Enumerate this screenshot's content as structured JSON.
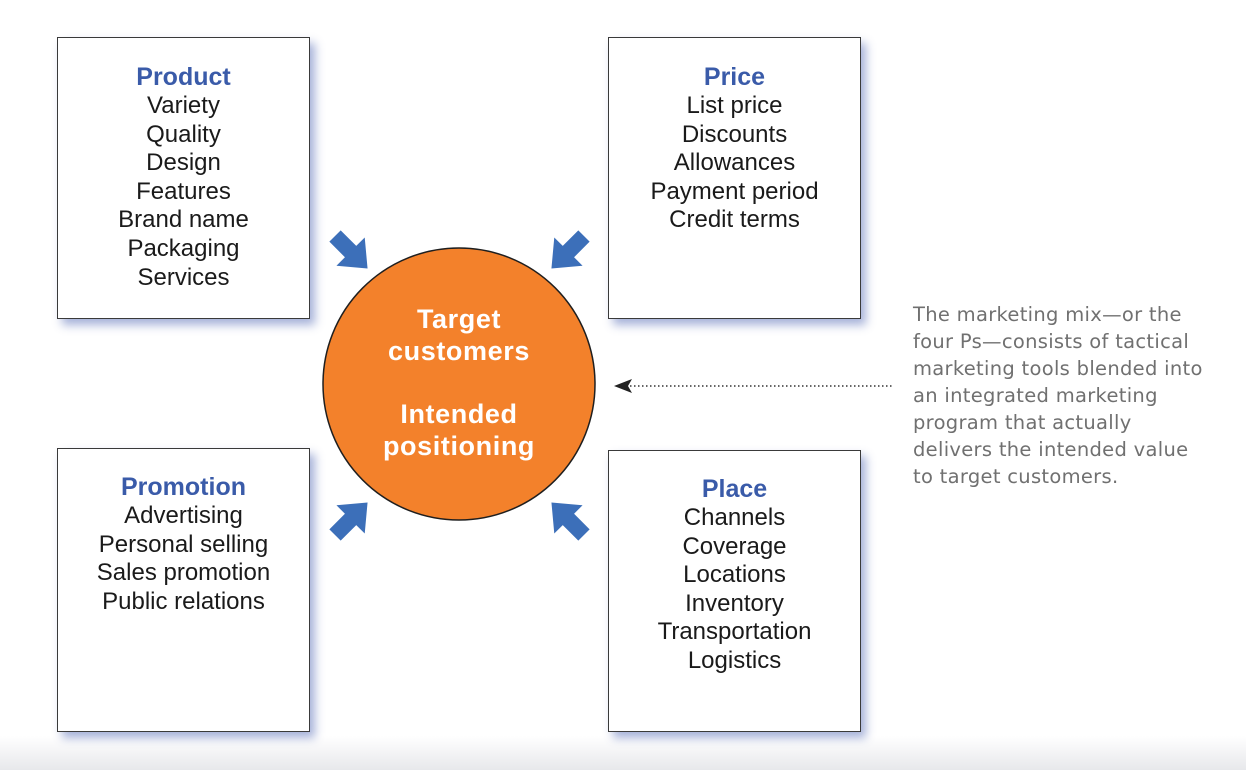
{
  "colors": {
    "heading_blue": "#3a5ba9",
    "arrow_blue": "#3c6fb9",
    "hub_orange": "#f3812b",
    "box_shadow": "#a5b3dc",
    "caption_gray": "#707070"
  },
  "boxes": {
    "product": {
      "title": "Product",
      "items": [
        "Variety",
        "Quality",
        "Design",
        "Features",
        "Brand name",
        "Packaging",
        "Services"
      ]
    },
    "price": {
      "title": "Price",
      "items": [
        "List price",
        "Discounts",
        "Allowances",
        "Payment period",
        "Credit terms"
      ]
    },
    "promotion": {
      "title": "Promotion",
      "items": [
        "Advertising",
        "Personal selling",
        "Sales promotion",
        "Public relations"
      ]
    },
    "place": {
      "title": "Place",
      "items": [
        "Channels",
        "Coverage",
        "Locations",
        "Inventory",
        "Transportation",
        "Logistics"
      ]
    }
  },
  "hub": {
    "line1": "Target",
    "line2": "customers",
    "line3": "Intended",
    "line4": "positioning"
  },
  "caption": {
    "lines": [
      "The marketing mix—or the",
      "four Ps—consists of tactical",
      "marketing tools blended into",
      "an integrated marketing",
      "program that actually",
      "delivers the intended value",
      "to target customers."
    ]
  },
  "icons": {
    "arrows": "thick-inward-pointing-arrow-icon",
    "pointer": "dotted-leader-arrow-icon"
  }
}
